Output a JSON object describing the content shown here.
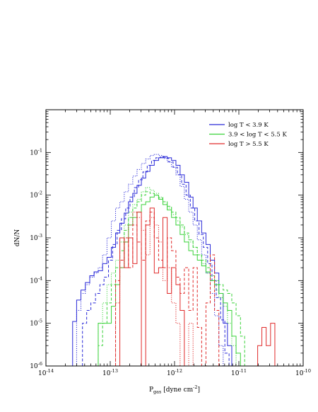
{
  "chart_data": {
    "type": "histogram",
    "xlabel": {
      "main": "P",
      "sub": "gas",
      "unit_pre": " [dyne cm",
      "unit_exp": "-2",
      "unit_post": "]"
    },
    "ylabel": "dN/N",
    "xscale": "log",
    "yscale": "log",
    "xlim": [
      1e-14,
      1e-10
    ],
    "ylim": [
      1e-06,
      1
    ],
    "x_ticks": [
      {
        "value": 1e-14,
        "base": "10",
        "exp": "-14"
      },
      {
        "value": 1e-13,
        "base": "10",
        "exp": "-13"
      },
      {
        "value": 1e-12,
        "base": "10",
        "exp": "-12"
      },
      {
        "value": 1e-11,
        "base": "10",
        "exp": "-11"
      },
      {
        "value": 1e-10,
        "base": "10",
        "exp": "-10"
      }
    ],
    "y_ticks": [
      {
        "value": 1e-06,
        "base": "10",
        "exp": "-6"
      },
      {
        "value": 1e-05,
        "base": "10",
        "exp": "-5"
      },
      {
        "value": 0.0001,
        "base": "10",
        "exp": "-4"
      },
      {
        "value": 0.001,
        "base": "10",
        "exp": "-3"
      },
      {
        "value": 0.01,
        "base": "10",
        "exp": "-2"
      },
      {
        "value": 0.1,
        "base": "10",
        "exp": "-1"
      }
    ],
    "grid": false,
    "legend_position": "top-right",
    "legend": [
      {
        "label": "log T < 3.9 K",
        "color": "#2a2ad8"
      },
      {
        "label": "3.9 < log T < 5.5 K",
        "color": "#3ad23a"
      },
      {
        "label": "log T > 5.5 K",
        "color": "#e02a2a"
      }
    ],
    "series": [
      {
        "color": "#2a2ad8",
        "style": "solid",
        "x": [
          2.6e-14,
          3e-14,
          3.5e-14,
          4.1e-14,
          4.8e-14,
          5.6e-14,
          6.5e-14,
          7.6e-14,
          8.9e-14,
          1.04e-13,
          1.21e-13,
          1.41e-13,
          1.65e-13,
          1.92e-13,
          2.24e-13,
          2.61e-13,
          3.05e-13,
          3.56e-13,
          4.15e-13,
          4.84e-13,
          5.65e-13,
          6.59e-13,
          7.69e-13,
          8.97e-13,
          1.05e-12,
          1.22e-12,
          1.42e-12,
          1.66e-12,
          1.94e-12,
          2.26e-12,
          2.64e-12,
          3.08e-12,
          3.59e-12,
          4.19e-12,
          4.89e-12,
          5.7e-12,
          6.65e-12,
          7.76e-12
        ],
        "y": [
          1.1e-05,
          3.5e-05,
          6e-05,
          9e-05,
          0.00013,
          0.00016,
          0.00017,
          0.00025,
          0.00035,
          0.0006,
          0.0013,
          0.0022,
          0.0038,
          0.007,
          0.011,
          0.017,
          0.025,
          0.036,
          0.05,
          0.065,
          0.075,
          0.08,
          0.075,
          0.065,
          0.05,
          0.03,
          0.02,
          0.009,
          0.005,
          0.0025,
          0.0013,
          0.0007,
          0.0003,
          0.00015,
          5e-05,
          1e-05,
          3e-06,
          1e-06
        ]
      },
      {
        "color": "#2a2ad8",
        "style": "dashed",
        "x": [
          3.7e-14,
          4.3e-14,
          5e-14,
          5.9e-14,
          6.9e-14,
          8e-14,
          9.4e-14,
          1.09e-13,
          1.28e-13,
          1.49e-13,
          1.74e-13,
          2.03e-13,
          2.37e-13,
          2.76e-13,
          3.22e-13,
          3.76e-13,
          4.39e-13,
          5.12e-13,
          5.98e-13,
          6.98e-13,
          8.14e-13,
          9.5e-13,
          1.11e-12,
          1.29e-12,
          1.51e-12,
          1.76e-12,
          2.06e-12,
          2.4e-12,
          2.8e-12,
          3.27e-12,
          3.82e-12,
          4.45e-12,
          5.2e-12,
          6.06e-12
        ],
        "y": [
          1e-05,
          2e-05,
          3e-05,
          5e-05,
          8e-05,
          0.00012,
          0.0003,
          0.0007,
          0.0015,
          0.0028,
          0.005,
          0.009,
          0.015,
          0.023,
          0.035,
          0.05,
          0.065,
          0.075,
          0.078,
          0.072,
          0.06,
          0.045,
          0.03,
          0.018,
          0.01,
          0.005,
          0.0025,
          0.0012,
          0.0006,
          0.00025,
          0.0001,
          4e-05,
          1.2e-05,
          2e-06
        ]
      },
      {
        "color": "#2a2ad8",
        "style": "dotted",
        "x": [
          3e-14,
          3.5e-14,
          4.1e-14,
          4.8e-14,
          5.6e-14,
          6.5e-14,
          7.6e-14,
          8.9e-14,
          1.04e-13,
          1.21e-13,
          1.41e-13,
          1.65e-13,
          1.92e-13,
          2.24e-13,
          2.61e-13,
          3.05e-13,
          3.56e-13,
          4.15e-13,
          4.84e-13,
          5.65e-13,
          6.59e-13,
          7.69e-13,
          8.97e-13,
          1.05e-12,
          1.22e-12,
          1.42e-12,
          1.66e-12,
          1.94e-12,
          2.26e-12,
          2.64e-12,
          3.08e-12,
          3.59e-12,
          4.19e-12,
          4.89e-12
        ],
        "y": [
          2e-05,
          5e-05,
          8e-05,
          0.00012,
          0.00015,
          0.0002,
          0.0004,
          0.001,
          0.0025,
          0.005,
          0.007,
          0.012,
          0.018,
          0.028,
          0.04,
          0.055,
          0.07,
          0.085,
          0.09,
          0.085,
          0.075,
          0.06,
          0.045,
          0.03,
          0.016,
          0.008,
          0.004,
          0.002,
          0.0009,
          0.0004,
          0.00015,
          5e-05,
          1.5e-05,
          3e-06
        ]
      },
      {
        "color": "#3ad23a",
        "style": "solid",
        "x": [
          6.5e-14,
          7.6e-14,
          8.9e-14,
          1.04e-13,
          1.21e-13,
          1.41e-13,
          1.65e-13,
          1.92e-13,
          2.24e-13,
          2.61e-13,
          3.05e-13,
          3.56e-13,
          4.15e-13,
          4.84e-13,
          5.65e-13,
          6.59e-13,
          7.69e-13,
          8.97e-13,
          1.05e-12,
          1.22e-12,
          1.42e-12,
          1.66e-12,
          1.94e-12,
          2.26e-12,
          2.64e-12,
          3.08e-12,
          3.59e-12,
          4.19e-12,
          4.89e-12,
          5.7e-12,
          6.65e-12,
          7.76e-12,
          9.05e-12,
          1.06e-11
        ],
        "y": [
          1e-05,
          1e-05,
          1e-05,
          2.5e-05,
          8e-05,
          0.0002,
          0.0008,
          0.002,
          0.003,
          0.004,
          0.006,
          0.007,
          0.009,
          0.01,
          0.008,
          0.006,
          0.0045,
          0.003,
          0.002,
          0.0012,
          0.0008,
          0.0005,
          0.0004,
          0.0003,
          0.00022,
          0.00016,
          0.0001,
          8e-05,
          5e-05,
          3e-05,
          2e-05,
          5e-06,
          2e-06,
          1e-06
        ]
      },
      {
        "color": "#3ad23a",
        "style": "dashed",
        "x": [
          5.6e-14,
          6.5e-14,
          7.6e-14,
          8.9e-14,
          1.04e-13,
          1.21e-13,
          1.41e-13,
          1.65e-13,
          1.92e-13,
          2.24e-13,
          2.61e-13,
          3.05e-13,
          3.56e-13,
          4.15e-13,
          4.84e-13,
          5.65e-13,
          6.59e-13,
          7.69e-13,
          8.97e-13,
          1.05e-12,
          1.22e-12,
          1.42e-12,
          1.66e-12,
          1.94e-12,
          2.26e-12,
          2.64e-12,
          3.08e-12,
          3.59e-12,
          4.19e-12,
          4.89e-12,
          5.7e-12,
          6.65e-12,
          7.76e-12,
          9.05e-12,
          1.06e-11,
          1.23e-11
        ],
        "y": [
          1e-06,
          3e-06,
          1e-05,
          3e-05,
          8e-05,
          0.0002,
          0.0005,
          0.0015,
          0.003,
          0.005,
          0.007,
          0.01,
          0.012,
          0.011,
          0.01,
          0.0085,
          0.007,
          0.0055,
          0.004,
          0.003,
          0.002,
          0.0013,
          0.0009,
          0.0006,
          0.0004,
          0.0003,
          0.0002,
          0.00013,
          0.0001,
          8e-05,
          6e-05,
          5e-05,
          3e-05,
          1.5e-05,
          5e-06,
          1e-06
        ]
      },
      {
        "color": "#3ad23a",
        "style": "dotted",
        "x": [
          6.5e-14,
          7.6e-14,
          8.9e-14,
          1.04e-13,
          1.21e-13,
          1.41e-13,
          1.65e-13,
          1.92e-13,
          2.24e-13,
          2.61e-13,
          3.05e-13,
          3.56e-13,
          4.15e-13,
          4.84e-13,
          5.65e-13,
          6.59e-13,
          7.69e-13,
          8.97e-13,
          1.05e-12,
          1.22e-12,
          1.42e-12,
          1.66e-12,
          1.94e-12,
          2.26e-12,
          2.64e-12,
          3.08e-12,
          3.59e-12,
          4.19e-12,
          4.89e-12,
          5.7e-12,
          6.65e-12,
          7.76e-12,
          9.05e-12
        ],
        "y": [
          1e-05,
          3e-05,
          8e-05,
          0.00015,
          0.0003,
          0.0008,
          0.002,
          0.004,
          0.006,
          0.008,
          0.012,
          0.015,
          0.013,
          0.011,
          0.009,
          0.007,
          0.005,
          0.0035,
          0.0025,
          0.0018,
          0.0012,
          0.0008,
          0.0006,
          0.0004,
          0.00025,
          0.00015,
          0.0001,
          6e-05,
          4e-05,
          2.5e-05,
          1e-05,
          3e-06,
          1e-06
        ]
      },
      {
        "color": "#e02a2a",
        "style": "solid",
        "x": [
          1.21e-13,
          1.41e-13,
          1.65e-13,
          1.92e-13,
          2.24e-13,
          2.61e-13,
          3.05e-13,
          3.56e-13,
          4.15e-13,
          4.84e-13,
          5.65e-13,
          6.59e-13,
          7.69e-13,
          8.97e-13,
          1.05e-12,
          1.22e-12,
          1.42e-12,
          1.66e-12,
          1.94e-12,
          2.26e-12,
          2.64e-12,
          3.08e-12,
          3.59e-12,
          4.19e-12,
          4.89e-12,
          5.7e-12,
          6.65e-12,
          7.76e-12,
          9.05e-12,
          1.06e-11,
          1.23e-11,
          1.44e-11,
          1.68e-11,
          1.96e-11,
          2.28e-11,
          2.66e-11,
          3.11e-11,
          3.63e-11
        ],
        "y": [
          1e-06,
          0.001,
          0.0002,
          0.001,
          0.00025,
          0.004,
          1e-06,
          0.002,
          0.005,
          0.00015,
          0.0002,
          0.003,
          5e-05,
          0.0002,
          8e-05,
          2e-05,
          1e-06,
          1e-06,
          1e-06,
          1e-06,
          1e-06,
          1e-06,
          1e-06,
          1e-06,
          1e-06,
          1e-06,
          1e-06,
          1e-06,
          1e-06,
          1e-06,
          1e-06,
          1e-06,
          1e-06,
          3e-06,
          8e-06,
          3e-06,
          1e-05,
          1e-06
        ]
      },
      {
        "color": "#e02a2a",
        "style": "dashed",
        "x": [
          1.04e-13,
          1.21e-13,
          1.41e-13,
          1.65e-13,
          1.92e-13,
          2.24e-13,
          2.61e-13,
          3.05e-13,
          3.56e-13,
          4.15e-13,
          4.84e-13,
          5.65e-13,
          6.59e-13,
          7.69e-13,
          8.97e-13,
          1.05e-12,
          1.22e-12,
          1.42e-12,
          1.66e-12,
          1.94e-12,
          2.26e-12,
          2.64e-12,
          3.08e-12,
          3.59e-12,
          4.19e-12,
          4.89e-12
        ],
        "y": [
          1e-06,
          0.0001,
          0.0003,
          0.001,
          0.0002,
          0.002,
          0.0008,
          0.0003,
          0.0025,
          0.004,
          0.001,
          0.0003,
          0.0002,
          0.001,
          0.0005,
          0.00012,
          5e-05,
          0.0002,
          2e-05,
          0.0002,
          8e-06,
          1e-06,
          3e-05,
          0.0004,
          2e-05,
          1e-06
        ]
      },
      {
        "color": "#e02a2a",
        "style": "dotted",
        "x": [
          1.04e-13,
          1.21e-13,
          1.41e-13,
          1.65e-13,
          1.92e-13,
          2.24e-13,
          2.61e-13,
          3.05e-13,
          3.56e-13,
          4.15e-13,
          4.84e-13,
          5.65e-13,
          6.59e-13,
          7.69e-13,
          8.97e-13,
          1.05e-12,
          1.22e-12,
          1.42e-12,
          1.66e-12,
          1.94e-12,
          2.26e-12,
          2.64e-12,
          3.08e-12,
          3.59e-12
        ],
        "y": [
          1e-06,
          3e-05,
          0.0002,
          0.0008,
          0.002,
          0.004,
          0.003,
          0.0015,
          0.0004,
          0.003,
          0.002,
          0.0008,
          0.0001,
          0.0002,
          3e-05,
          1e-05,
          1e-06,
          1e-06,
          1e-05,
          1e-06,
          1e-06,
          1e-06,
          1e-06,
          1e-06
        ]
      }
    ]
  }
}
